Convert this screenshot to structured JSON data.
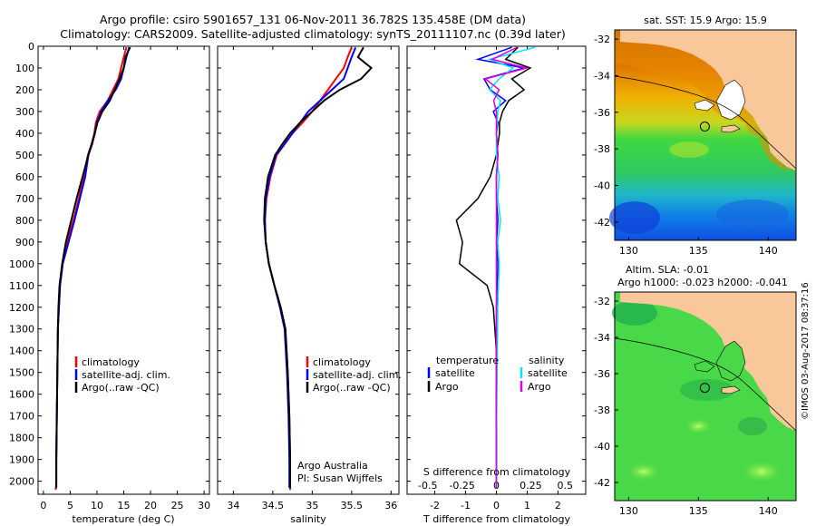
{
  "title_line1": "Argo profile: csiro 5901657_131 06-Nov-2011 36.782S 135.458E (DM data)",
  "title_line2": "Climatology: CARS2009. Satellite-adjusted climatology: synTS_20111107.nc (0.39d later)",
  "side_label": "©IMOS 03-Aug-2017 08:37:16",
  "credit_line1": "Argo Australia",
  "credit_line2": "PI: Susan Wijffels",
  "colors": {
    "climatology": "#ff0000",
    "satellite": "#0000ff",
    "argo": "#000000",
    "sat_salinity": "#00e5ff",
    "argo_salinity": "#e000e0",
    "land": "#f8c89a"
  },
  "chart_data": [
    {
      "type": "line",
      "xlabel": "temperature (deg C)",
      "xlim": [
        -1,
        31
      ],
      "xticks": [
        0,
        5,
        10,
        15,
        20,
        25,
        30
      ],
      "ylim": [
        0,
        2060
      ],
      "yticks": [
        0,
        100,
        200,
        300,
        400,
        500,
        600,
        700,
        800,
        900,
        1000,
        1100,
        1200,
        1300,
        1400,
        1500,
        1600,
        1700,
        1800,
        1900,
        2000
      ],
      "legend": [
        "climatology",
        "satellite-adj. clim.",
        "Argo(..raw -QC)"
      ],
      "series": [
        {
          "name": "climatology",
          "x": [
            15.5,
            15.0,
            14.5,
            14.0,
            13.0,
            12.0,
            10.5,
            9.8,
            9.5,
            9.0,
            8.3,
            7.5,
            6.6,
            5.6,
            4.4,
            3.6,
            3.1,
            2.9,
            2.7,
            2.6,
            2.5,
            2.4,
            2.4,
            2.3
          ],
          "y": [
            5,
            50,
            100,
            150,
            200,
            250,
            300,
            350,
            400,
            450,
            500,
            600,
            700,
            800,
            900,
            1000,
            1100,
            1200,
            1300,
            1500,
            1700,
            1900,
            2000,
            2040
          ]
        },
        {
          "name": "satellite-adj. clim.",
          "x": [
            16.0,
            15.5,
            15.0,
            14.5,
            13.5,
            12.0,
            10.8,
            10.0,
            9.6,
            9.1,
            8.4,
            7.8,
            6.8,
            5.8,
            4.7,
            3.6,
            3.1,
            2.9,
            2.7,
            2.6,
            2.5,
            2.4,
            2.4
          ],
          "y": [
            5,
            50,
            100,
            150,
            200,
            250,
            300,
            350,
            400,
            450,
            500,
            600,
            700,
            800,
            900,
            1000,
            1100,
            1200,
            1300,
            1500,
            1700,
            1900,
            2030
          ]
        },
        {
          "name": "Argo(..raw -QC)",
          "x": [
            16.2,
            15.3,
            15.0,
            14.2,
            13.3,
            12.4,
            11.0,
            10.1,
            9.6,
            9.0,
            8.4,
            7.3,
            6.2,
            5.2,
            4.2,
            3.5,
            3.0,
            2.8,
            2.7,
            2.6,
            2.5,
            2.4,
            2.4
          ],
          "y": [
            5,
            50,
            100,
            150,
            200,
            250,
            300,
            350,
            400,
            450,
            500,
            600,
            700,
            800,
            900,
            1000,
            1100,
            1200,
            1300,
            1500,
            1700,
            1900,
            2030
          ]
        }
      ]
    },
    {
      "type": "line",
      "xlabel": "salinity",
      "xlim": [
        33.8,
        36.1
      ],
      "xticks": [
        34,
        34.5,
        35,
        35.5,
        36
      ],
      "ylim": [
        0,
        2060
      ],
      "legend": [
        "climatology",
        "satellite-adj. clim.",
        "Argo(..raw -QC)"
      ],
      "series": [
        {
          "name": "climatology",
          "x": [
            35.5,
            35.45,
            35.4,
            35.3,
            35.2,
            35.1,
            35.0,
            34.88,
            34.75,
            34.65,
            34.55,
            34.47,
            34.42,
            34.4,
            34.41,
            34.45,
            34.52,
            34.6,
            34.66,
            34.69,
            34.71,
            34.72,
            34.72
          ],
          "y": [
            5,
            50,
            100,
            150,
            200,
            250,
            300,
            350,
            400,
            450,
            500,
            600,
            700,
            800,
            900,
            1000,
            1100,
            1200,
            1300,
            1500,
            1700,
            1900,
            2040
          ]
        },
        {
          "name": "satellite-adj. clim.",
          "x": [
            35.55,
            35.5,
            35.45,
            35.4,
            35.25,
            35.1,
            34.95,
            34.85,
            34.75,
            34.65,
            34.54,
            34.46,
            34.41,
            34.4,
            34.41,
            34.45,
            34.52,
            34.59,
            34.65,
            34.68,
            34.7,
            34.71,
            34.71
          ],
          "y": [
            5,
            50,
            100,
            150,
            200,
            250,
            300,
            350,
            400,
            450,
            500,
            600,
            700,
            800,
            900,
            1000,
            1100,
            1200,
            1300,
            1500,
            1700,
            1900,
            2030
          ]
        },
        {
          "name": "Argo(..raw -QC)",
          "x": [
            35.65,
            35.58,
            35.75,
            35.62,
            35.35,
            35.15,
            35.0,
            34.85,
            34.72,
            34.62,
            34.53,
            34.44,
            34.4,
            34.39,
            34.41,
            34.45,
            34.52,
            34.6,
            34.66,
            34.69,
            34.71,
            34.72,
            34.72
          ],
          "y": [
            5,
            50,
            100,
            150,
            200,
            250,
            300,
            350,
            400,
            450,
            500,
            600,
            700,
            800,
            900,
            1000,
            1100,
            1200,
            1300,
            1500,
            1700,
            1900,
            2030
          ]
        }
      ]
    },
    {
      "type": "line",
      "xlabel": "T difference from climatology",
      "xlabel_top": "S difference from climatology",
      "xlim": [
        -2.9,
        2.9
      ],
      "xticks": [
        -2,
        -1,
        0,
        1,
        2
      ],
      "xticks_top": [
        -0.5,
        -0.25,
        0,
        0.25,
        0.5
      ],
      "xticks_top_labels": [
        "-0.5",
        "-0.25",
        "0",
        "0.25",
        "0.5"
      ],
      "ylim": [
        0,
        2060
      ],
      "legend_titles": [
        "temperature",
        "salinity"
      ],
      "legend": [
        "satellite",
        "Argo",
        "satellite",
        "Argo"
      ],
      "series": [
        {
          "name": "satellite",
          "x": [
            0.5,
            -0.6,
            0.9,
            -0.4,
            -0.2,
            0.3,
            -0.1,
            0.05,
            0,
            0.05,
            0,
            0,
            0.05,
            0,
            0.05,
            0,
            0,
            0,
            0
          ],
          "y": [
            5,
            60,
            100,
            150,
            200,
            250,
            300,
            350,
            400,
            500,
            600,
            700,
            800,
            900,
            1000,
            1200,
            1500,
            1800,
            2030
          ]
        },
        {
          "name": "Argo",
          "x": [
            0.7,
            0.3,
            1.1,
            0.5,
            0.9,
            0.4,
            0.2,
            0.1,
            0.1,
            0,
            -0.2,
            -0.6,
            -1.3,
            -1.1,
            -1.2,
            -0.3,
            -0.1,
            0,
            0,
            0,
            0
          ],
          "y": [
            5,
            60,
            100,
            150,
            200,
            250,
            300,
            350,
            400,
            500,
            600,
            700,
            800,
            900,
            1000,
            1100,
            1200,
            1400,
            1600,
            1800,
            2030
          ]
        },
        {
          "name": "satellite",
          "x": [
            0.28,
            -0.05,
            0.12,
            0.02,
            -0.05,
            0.03,
            0.01,
            0,
            0,
            0.02,
            0.01,
            0.03,
            0.01,
            0.02,
            0.01,
            0.005,
            0,
            0
          ],
          "y": [
            5,
            60,
            100,
            150,
            200,
            250,
            300,
            400,
            500,
            600,
            700,
            800,
            900,
            1000,
            1200,
            1500,
            1800,
            2030
          ]
        },
        {
          "name": "Argo",
          "x": [
            0.15,
            -0.03,
            0.22,
            -0.08,
            0.02,
            -0.02,
            0,
            0,
            0.01,
            0,
            0,
            0,
            0,
            0,
            0,
            0
          ],
          "y": [
            5,
            60,
            100,
            150,
            200,
            250,
            300,
            400,
            500,
            600,
            700,
            800,
            1000,
            1300,
            1700,
            2030
          ]
        }
      ]
    },
    {
      "type": "heatmap",
      "title": "sat. SST: 15.9 Argo: 15.9",
      "xlim": [
        129,
        142
      ],
      "ylim": [
        -43,
        -31.5
      ],
      "xticks": [
        130,
        135,
        140
      ],
      "yticks": [
        -32,
        -34,
        -36,
        -38,
        -40,
        -42
      ],
      "profile_location": {
        "lon": 135.46,
        "lat": -36.78
      }
    },
    {
      "type": "heatmap",
      "title_line1": "Altim. SLA: -0.01",
      "title_line2": "Argo h1000: -0.023 h2000: -0.041",
      "xlim": [
        129,
        142
      ],
      "ylim": [
        -43,
        -31.5
      ],
      "xticks": [
        130,
        135,
        140
      ],
      "yticks": [
        -32,
        -34,
        -36,
        -38,
        -40,
        -42
      ],
      "profile_location": {
        "lon": 135.46,
        "lat": -36.78
      }
    }
  ]
}
